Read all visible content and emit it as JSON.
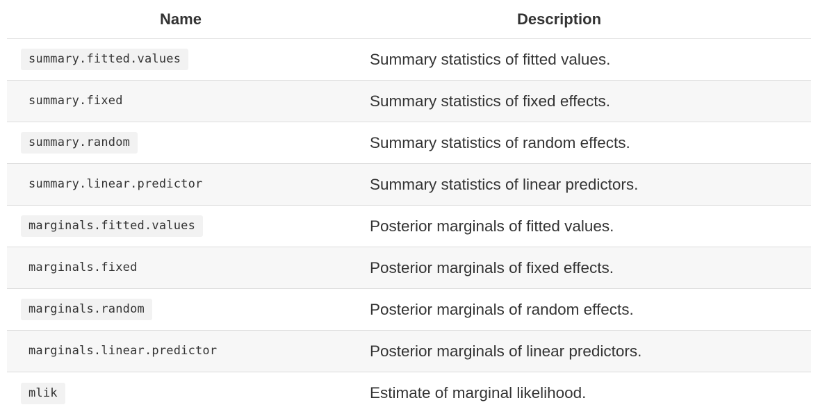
{
  "table": {
    "headers": {
      "name": "Name",
      "description": "Description"
    },
    "rows": [
      {
        "name": "summary.fitted.values",
        "description": "Summary statistics of fitted values."
      },
      {
        "name": "summary.fixed",
        "description": "Summary statistics of fixed effects."
      },
      {
        "name": "summary.random",
        "description": "Summary statistics of random effects."
      },
      {
        "name": "summary.linear.predictor",
        "description": "Summary statistics of linear predictors."
      },
      {
        "name": "marginals.fitted.values",
        "description": "Posterior marginals of fitted values."
      },
      {
        "name": "marginals.fixed",
        "description": "Posterior marginals of fixed effects."
      },
      {
        "name": "marginals.random",
        "description": "Posterior marginals of random effects."
      },
      {
        "name": "marginals.linear.predictor",
        "description": "Posterior marginals of linear predictors."
      },
      {
        "name": "mlik",
        "description": "Estimate of marginal likelihood."
      }
    ]
  }
}
